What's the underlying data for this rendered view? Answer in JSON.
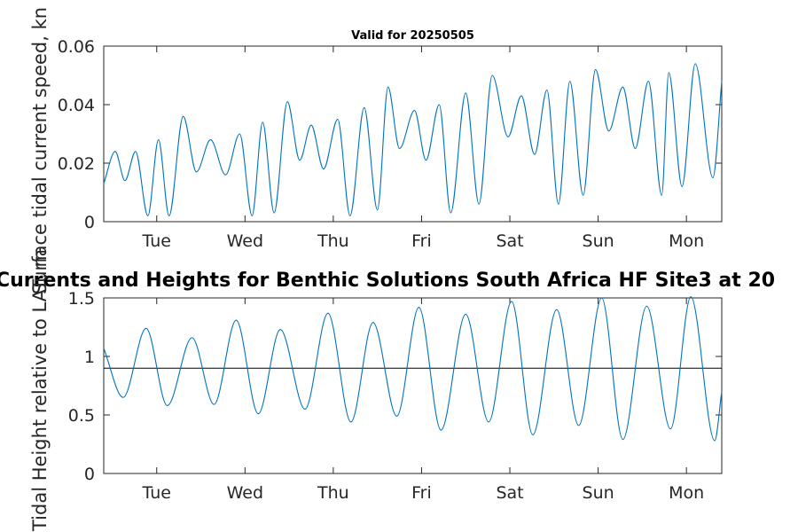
{
  "figure": {
    "overlay_title": "Currents and Heights for Benthic Solutions South Africa HF Site3 at 20"
  },
  "chart_data": [
    {
      "type": "line",
      "title": "Valid for 20250505",
      "xlabel": "",
      "ylabel": "Surface tidal current speed, kn",
      "x_unit": "days since Mon 00:00",
      "xlim": [
        0.4,
        7.4
      ],
      "x_ticks": [
        1,
        2,
        3,
        4,
        5,
        6,
        7
      ],
      "x_tick_labels": [
        "Tue",
        "Wed",
        "Thu",
        "Fri",
        "Sat",
        "Sun",
        "Mon"
      ],
      "ylim": [
        0,
        0.06
      ],
      "y_ticks": [
        0,
        0.02,
        0.04,
        0.06
      ],
      "y_tick_labels": [
        "0",
        "0.02",
        "0.04",
        "0.06"
      ],
      "grid": false,
      "series": [
        {
          "color": "#0072bd",
          "x": [
            0.4,
            0.53,
            0.64,
            0.76,
            0.9,
            1.02,
            1.14,
            1.3,
            1.45,
            1.61,
            1.78,
            1.94,
            2.08,
            2.2,
            2.33,
            2.48,
            2.62,
            2.75,
            2.89,
            3.05,
            3.19,
            3.35,
            3.5,
            3.62,
            3.75,
            3.92,
            4.05,
            4.2,
            4.33,
            4.5,
            4.65,
            4.8,
            4.98,
            5.13,
            5.28,
            5.42,
            5.55,
            5.68,
            5.83,
            5.97,
            6.12,
            6.28,
            6.42,
            6.57,
            6.72,
            6.8,
            6.95,
            7.1,
            7.3,
            7.4
          ],
          "y": [
            0.013,
            0.024,
            0.014,
            0.024,
            0.002,
            0.028,
            0.002,
            0.036,
            0.017,
            0.028,
            0.016,
            0.03,
            0.002,
            0.034,
            0.003,
            0.041,
            0.021,
            0.033,
            0.018,
            0.035,
            0.002,
            0.039,
            0.004,
            0.046,
            0.025,
            0.038,
            0.021,
            0.04,
            0.003,
            0.044,
            0.006,
            0.05,
            0.029,
            0.043,
            0.023,
            0.045,
            0.006,
            0.048,
            0.009,
            0.052,
            0.031,
            0.046,
            0.025,
            0.048,
            0.009,
            0.051,
            0.012,
            0.054,
            0.015,
            0.048
          ]
        }
      ]
    },
    {
      "type": "line",
      "title": "",
      "xlabel": "",
      "ylabel": "Tidal Height relative to LAT, m",
      "x_unit": "days since Mon 00:00",
      "xlim": [
        0.4,
        7.4
      ],
      "x_ticks": [
        1,
        2,
        3,
        4,
        5,
        6,
        7
      ],
      "x_tick_labels": [
        "Tue",
        "Wed",
        "Thu",
        "Fri",
        "Sat",
        "Sun",
        "Mon"
      ],
      "ylim": [
        0,
        1.5
      ],
      "y_ticks": [
        0,
        0.5,
        1,
        1.5
      ],
      "y_tick_labels": [
        "0",
        "0.5",
        "1",
        "1.5"
      ],
      "grid": false,
      "reference_line": {
        "y": 0.9,
        "color": "#000000"
      },
      "series": [
        {
          "color": "#0072bd",
          "x": [
            0.4,
            0.62,
            0.88,
            1.12,
            1.4,
            1.65,
            1.9,
            2.15,
            2.4,
            2.68,
            2.94,
            3.2,
            3.45,
            3.72,
            3.97,
            4.22,
            4.5,
            4.76,
            5.02,
            5.26,
            5.53,
            5.78,
            6.04,
            6.28,
            6.55,
            6.82,
            7.05,
            7.32,
            7.4
          ],
          "y": [
            1.07,
            0.65,
            1.24,
            0.58,
            1.16,
            0.59,
            1.31,
            0.51,
            1.23,
            0.55,
            1.37,
            0.44,
            1.29,
            0.49,
            1.42,
            0.37,
            1.36,
            0.44,
            1.47,
            0.33,
            1.4,
            0.41,
            1.5,
            0.29,
            1.43,
            0.38,
            1.51,
            0.28,
            0.7
          ]
        }
      ]
    }
  ]
}
